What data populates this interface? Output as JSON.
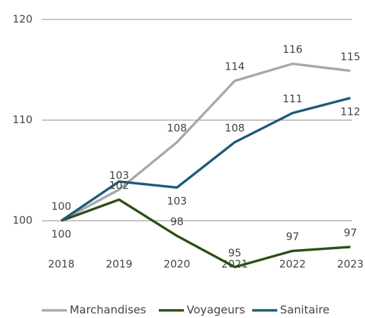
{
  "chart_data": {
    "type": "line",
    "categories": [
      "2018",
      "2019",
      "2020",
      "2021",
      "2022",
      "2023"
    ],
    "series": [
      {
        "name": "Marchandises",
        "color": "#a3a9b1",
        "values": [
          100,
          103.1,
          107.8,
          113.9,
          115.6,
          114.9
        ],
        "value_labels": [
          "100",
          "103",
          "108",
          "114",
          "116",
          "115"
        ]
      },
      {
        "name": "Voyageurs",
        "color": "#2b4f14",
        "values": [
          100,
          102.1,
          98.5,
          95.4,
          97.0,
          97.4
        ],
        "value_labels": [
          "100",
          "102",
          "98",
          "95",
          "97",
          "97"
        ]
      },
      {
        "name": "Sanitaire",
        "color": "#1f5a7a",
        "values": [
          100,
          103.9,
          103.3,
          107.8,
          110.7,
          112.2
        ],
        "value_labels": [
          null,
          null,
          "103",
          "108",
          "111",
          "112"
        ]
      }
    ],
    "ylim": [
      94,
      120
    ],
    "yticks": [
      100,
      110,
      120
    ],
    "grid": true
  }
}
